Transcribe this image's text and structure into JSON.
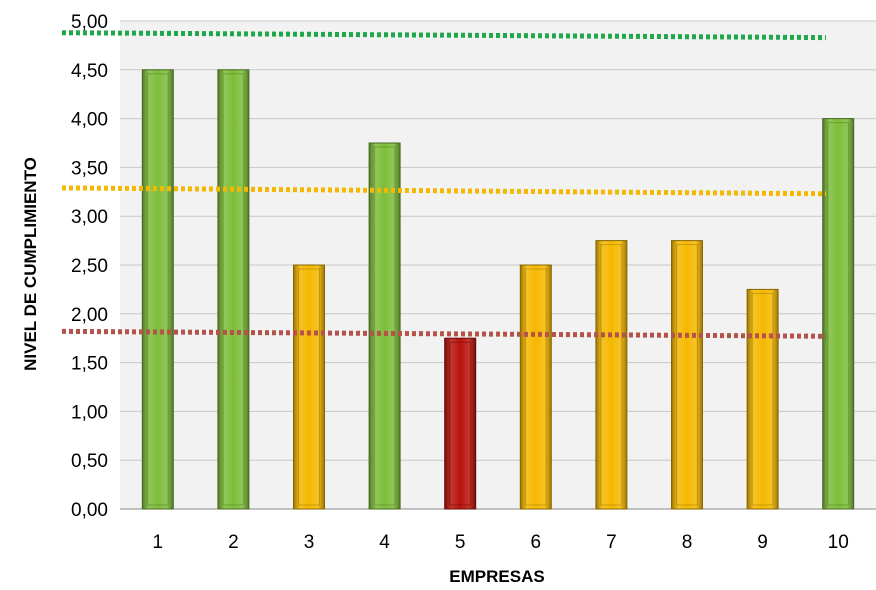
{
  "chart_data": {
    "type": "bar",
    "title": "",
    "xlabel": "EMPRESAS",
    "ylabel": "NIVEL DE CUMPLIMIENTO",
    "categories": [
      "1",
      "2",
      "3",
      "4",
      "5",
      "6",
      "7",
      "8",
      "9",
      "10"
    ],
    "values": [
      4.5,
      4.5,
      2.5,
      3.75,
      1.75,
      2.5,
      2.75,
      2.75,
      2.25,
      4.0
    ],
    "ylim": [
      0,
      5
    ],
    "yticks": [
      "0,00",
      "0,50",
      "1,00",
      "1,50",
      "2,00",
      "2,50",
      "3,00",
      "3,50",
      "4,00",
      "4,50",
      "5,00"
    ],
    "grid": true,
    "legend": "none",
    "bar_colors": [
      "#7dbd3a",
      "#7dbd3a",
      "#f5b800",
      "#7dbd3a",
      "#b8140c",
      "#f5b800",
      "#f5b800",
      "#f5b800",
      "#f5b800",
      "#7dbd3a"
    ],
    "reference_lines": [
      {
        "start": 4.88,
        "end": 4.83,
        "color": "#1fa84a"
      },
      {
        "start": 3.29,
        "end": 3.23,
        "color": "#f5b800"
      },
      {
        "start": 1.82,
        "end": 1.77,
        "color": "#b5524a"
      }
    ]
  }
}
